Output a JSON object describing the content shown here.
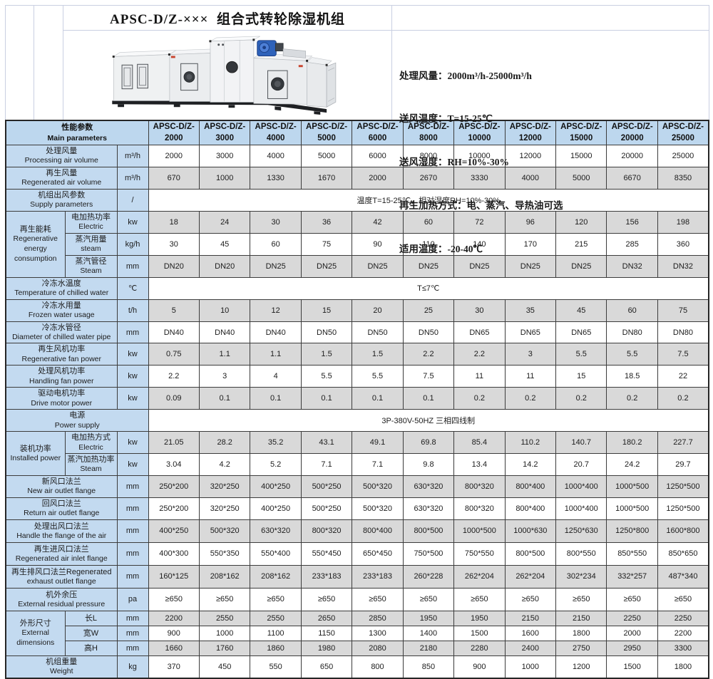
{
  "title": "APSC-D/Z-×××  组合式转轮除湿机组",
  "intro": {
    "lines": [
      "处理风量：2000m³/h-25000m³/h",
      "送风温度：T=15-25℃",
      "送风湿度：RH=10%-30%",
      "再生加热方式：电、蒸汽、导热油可选",
      "适用温度：-20-40℃"
    ]
  },
  "table": {
    "header": {
      "zh": "性能参数",
      "en": "Main parameters",
      "model_prefix": "APSC-D/Z-",
      "models": [
        "2000",
        "3000",
        "4000",
        "5000",
        "6000",
        "8000",
        "10000",
        "12000",
        "15000",
        "20000",
        "25000"
      ]
    },
    "rows": [
      {
        "zh": "处理风量",
        "en": "Processing air volume",
        "unit": "m³/h",
        "shade": "w",
        "values": [
          "2000",
          "3000",
          "4000",
          "5000",
          "6000",
          "8000",
          "10000",
          "12000",
          "15000",
          "20000",
          "25000"
        ]
      },
      {
        "zh": "再生风量",
        "en": "Regenerated air volume",
        "unit": "m³/h",
        "shade": "g",
        "values": [
          "670",
          "1000",
          "1330",
          "1670",
          "2000",
          "2670",
          "3330",
          "4000",
          "5000",
          "6670",
          "8350"
        ]
      },
      {
        "zh": "机组出风参数",
        "en": "Supply parameters",
        "unit": "/",
        "shade": "w",
        "text": "温度T=15-25℃，相对湿度RH=10%-30%"
      },
      {
        "group": {
          "zh": "再生能耗",
          "en": "Regenerative energy consumption",
          "rowspan": 3
        },
        "zh": "电加热功率",
        "en": "Electric",
        "unit": "kw",
        "shade": "g",
        "sub": true,
        "values": [
          "18",
          "24",
          "30",
          "36",
          "42",
          "60",
          "72",
          "96",
          "120",
          "156",
          "198"
        ]
      },
      {
        "zh": "蒸汽用量",
        "en": "steam",
        "unit": "kg/h",
        "shade": "w",
        "sub": true,
        "values": [
          "30",
          "45",
          "60",
          "75",
          "90",
          "110",
          "140",
          "170",
          "215",
          "285",
          "360"
        ]
      },
      {
        "zh": "蒸汽管径",
        "en": "Steam",
        "unit": "mm",
        "shade": "g",
        "sub": true,
        "values": [
          "DN20",
          "DN20",
          "DN25",
          "DN25",
          "DN25",
          "DN25",
          "DN25",
          "DN25",
          "DN25",
          "DN32",
          "DN32"
        ]
      },
      {
        "zh": "冷冻水温度",
        "en": "Temperature of chilled water",
        "unit": "℃",
        "shade": "w",
        "text": "T≤7℃"
      },
      {
        "zh": "冷冻水用量",
        "en": "Frozen water usage",
        "unit": "t/h",
        "shade": "g",
        "values": [
          "5",
          "10",
          "12",
          "15",
          "20",
          "25",
          "30",
          "35",
          "45",
          "60",
          "75"
        ]
      },
      {
        "zh": "冷冻水管径",
        "en": "Diameter of chilled water pipe",
        "unit": "mm",
        "shade": "w",
        "values": [
          "DN40",
          "DN40",
          "DN40",
          "DN50",
          "DN50",
          "DN50",
          "DN65",
          "DN65",
          "DN65",
          "DN80",
          "DN80"
        ]
      },
      {
        "zh": "再生风机功率",
        "en": "Regenerative fan power",
        "unit": "kw",
        "shade": "g",
        "values": [
          "0.75",
          "1.1",
          "1.1",
          "1.5",
          "1.5",
          "2.2",
          "2.2",
          "3",
          "5.5",
          "5.5",
          "7.5"
        ]
      },
      {
        "zh": "处理风机功率",
        "en": "Handling fan power",
        "unit": "kw",
        "shade": "w",
        "values": [
          "2.2",
          "3",
          "4",
          "5.5",
          "5.5",
          "7.5",
          "11",
          "11",
          "15",
          "18.5",
          "22"
        ]
      },
      {
        "zh": "驱动电机功率",
        "en": "Drive motor power",
        "unit": "kw",
        "shade": "g",
        "values": [
          "0.09",
          "0.1",
          "0.1",
          "0.1",
          "0.1",
          "0.1",
          "0.2",
          "0.2",
          "0.2",
          "0.2",
          "0.2"
        ]
      },
      {
        "zh": "电源",
        "en": "Power supply",
        "unit": null,
        "shade": "w",
        "text": "3P-380V-50HZ 三相四线制"
      },
      {
        "group": {
          "zh": "装机功率",
          "en": "Installed power",
          "rowspan": 2
        },
        "zh": "电加热方式",
        "en": "Electric",
        "unit": "kw",
        "shade": "g",
        "sub": true,
        "values": [
          "21.05",
          "28.2",
          "35.2",
          "43.1",
          "49.1",
          "69.8",
          "85.4",
          "110.2",
          "140.7",
          "180.2",
          "227.7"
        ]
      },
      {
        "zh": "蒸汽加热功率",
        "en": "Steam",
        "unit": "kw",
        "shade": "w",
        "sub": true,
        "values": [
          "3.04",
          "4.2",
          "5.2",
          "7.1",
          "7.1",
          "9.8",
          "13.4",
          "14.2",
          "20.7",
          "24.2",
          "29.7"
        ]
      },
      {
        "zh": "新风口法兰",
        "en": "New air outlet flange",
        "unit": "mm",
        "shade": "g",
        "values": [
          "250*200",
          "320*250",
          "400*250",
          "500*250",
          "500*320",
          "630*320",
          "800*320",
          "800*400",
          "1000*400",
          "1000*500",
          "1250*500"
        ]
      },
      {
        "zh": "回风口法兰",
        "en": "Return air outlet flange",
        "unit": "mm",
        "shade": "w",
        "values": [
          "250*200",
          "320*250",
          "400*250",
          "500*250",
          "500*320",
          "630*320",
          "800*320",
          "800*400",
          "1000*400",
          "1000*500",
          "1250*500"
        ]
      },
      {
        "zh": "处理出风口法兰",
        "en": "Handle the flange of the air",
        "unit": "mm",
        "shade": "g",
        "values": [
          "400*250",
          "500*320",
          "630*320",
          "800*320",
          "800*400",
          "800*500",
          "1000*500",
          "1000*630",
          "1250*630",
          "1250*800",
          "1600*800"
        ]
      },
      {
        "zh": "再生进风口法兰",
        "en": "Regenerated air inlet flange",
        "unit": "mm",
        "shade": "w",
        "values": [
          "400*300",
          "550*350",
          "550*400",
          "550*450",
          "650*450",
          "750*500",
          "750*550",
          "800*500",
          "800*550",
          "850*550",
          "850*650"
        ]
      },
      {
        "zh": "再生排风口法兰Regenerated",
        "en": "exhaust outlet flange",
        "unit": "mm",
        "shade": "g",
        "values": [
          "160*125",
          "208*162",
          "208*162",
          "233*183",
          "233*183",
          "260*228",
          "262*204",
          "262*204",
          "302*234",
          "332*257",
          "487*340"
        ]
      },
      {
        "zh": "机外余压",
        "en": "External residual pressure",
        "unit": "pa",
        "shade": "w",
        "values": [
          "≥650",
          "≥650",
          "≥650",
          "≥650",
          "≥650",
          "≥650",
          "≥650",
          "≥650",
          "≥650",
          "≥650",
          "≥650"
        ]
      },
      {
        "group": {
          "zh": "外形尺寸",
          "en": "External dimensions",
          "rowspan": 3
        },
        "zh": "长L",
        "en": null,
        "unit": "mm",
        "shade": "g",
        "sub": true,
        "slim": true,
        "values": [
          "2200",
          "2550",
          "2550",
          "2650",
          "2850",
          "1950",
          "1950",
          "2150",
          "2150",
          "2250",
          "2250"
        ]
      },
      {
        "zh": "宽W",
        "en": null,
        "unit": "mm",
        "shade": "w",
        "sub": true,
        "slim": true,
        "values": [
          "900",
          "1000",
          "1100",
          "1150",
          "1300",
          "1400",
          "1500",
          "1600",
          "1800",
          "2000",
          "2200"
        ]
      },
      {
        "zh": "高H",
        "en": null,
        "unit": "mm",
        "shade": "g",
        "sub": true,
        "slim": true,
        "values": [
          "1660",
          "1760",
          "1860",
          "1980",
          "2080",
          "2180",
          "2280",
          "2400",
          "2750",
          "2950",
          "3300"
        ]
      },
      {
        "zh": "机组重量",
        "en": "Weight",
        "unit": "kg",
        "shade": "w",
        "values": [
          "370",
          "450",
          "550",
          "650",
          "800",
          "850",
          "900",
          "1000",
          "1200",
          "1500",
          "1800"
        ]
      }
    ]
  }
}
